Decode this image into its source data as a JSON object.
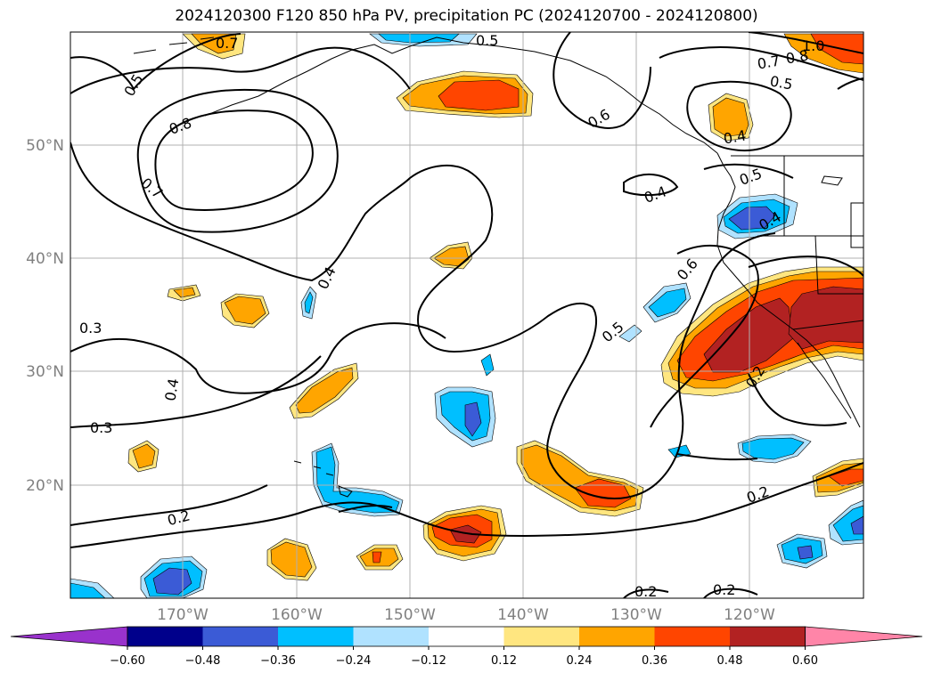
{
  "title": "2024120300 F120 850 hPa PV, precipitation PC (2024120700 - 2024120800)",
  "axes": {
    "lat_ticks": [
      "50°N",
      "40°N",
      "30°N",
      "20°N"
    ],
    "lon_ticks": [
      "170°W",
      "160°W",
      "150°W",
      "140°W",
      "130°W",
      "120°W"
    ]
  },
  "colorbar": {
    "tick_labels": [
      "−0.60",
      "−0.48",
      "−0.36",
      "−0.24",
      "−0.12",
      "0.12",
      "0.24",
      "0.36",
      "0.48",
      "0.60"
    ],
    "colors": [
      "#9932cc",
      "#00008b",
      "#3b5bd6",
      "#00bfff",
      "#b0e2ff",
      "#ffffff",
      "#ffe680",
      "#ffa500",
      "#ff4500",
      "#b22222",
      "#ff85a8"
    ]
  },
  "contour_labels": [
    "0.7",
    "0.5",
    "0.5",
    "0.8",
    "0.7",
    "0.6",
    "0.4",
    "0.5",
    "0.4",
    "0.4",
    "0.4",
    "0.3",
    "0.4",
    "0.3",
    "0.5",
    "0.6",
    "0.2",
    "0.2",
    "0.2",
    "0.2",
    "0.2",
    "1.0",
    "0.8",
    "0.7",
    "0.5"
  ]
}
